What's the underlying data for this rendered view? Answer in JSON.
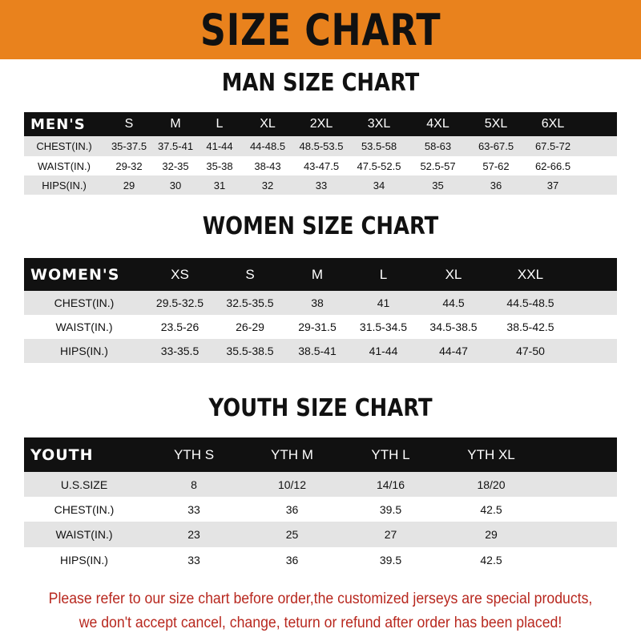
{
  "title": "SIZE CHART",
  "accent_color": "#e9821d",
  "men": {
    "title": "MAN SIZE CHART",
    "header": [
      "MEN'S",
      "S",
      "M",
      "L",
      "XL",
      "2XL",
      "3XL",
      "4XL",
      "5XL",
      "6XL"
    ],
    "rows": [
      [
        "CHEST(IN.)",
        "35-37.5",
        "37.5-41",
        "41-44",
        "44-48.5",
        "48.5-53.5",
        "53.5-58",
        "58-63",
        "63-67.5",
        "67.5-72"
      ],
      [
        "WAIST(IN.)",
        "29-32",
        "32-35",
        "35-38",
        "38-43",
        "43-47.5",
        "47.5-52.5",
        "52.5-57",
        "57-62",
        "62-66.5"
      ],
      [
        "HIPS(IN.)",
        "29",
        "30",
        "31",
        "32",
        "33",
        "34",
        "35",
        "36",
        "37"
      ]
    ]
  },
  "women": {
    "title": "WOMEN SIZE CHART",
    "header": [
      "WOMEN'S",
      "XS",
      "S",
      "M",
      "L",
      "XL",
      "XXL"
    ],
    "rows": [
      [
        "CHEST(IN.)",
        "29.5-32.5",
        "32.5-35.5",
        "38",
        "41",
        "44.5",
        "44.5-48.5"
      ],
      [
        "WAIST(IN.)",
        "23.5-26",
        "26-29",
        "29-31.5",
        "31.5-34.5",
        "34.5-38.5",
        "38.5-42.5"
      ],
      [
        "HIPS(IN.)",
        "33-35.5",
        "35.5-38.5",
        "38.5-41",
        "41-44",
        "44-47",
        "47-50"
      ]
    ]
  },
  "youth": {
    "title": "YOUTH SIZE CHART",
    "header": [
      "YOUTH",
      "YTH S",
      "YTH M",
      "YTH L",
      "YTH XL"
    ],
    "rows": [
      [
        "U.S.SIZE",
        "8",
        "10/12",
        "14/16",
        "18/20"
      ],
      [
        "CHEST(IN.)",
        "33",
        "36",
        "39.5",
        "42.5"
      ],
      [
        "WAIST(IN.)",
        "23",
        "25",
        "27",
        "29"
      ],
      [
        "HIPS(IN.)",
        "33",
        "36",
        "39.5",
        "42.5"
      ]
    ]
  },
  "footer": {
    "line1": "Please refer to our size chart before order,the customized jerseys are special products,",
    "line2": "we don't accept cancel, change, teturn or refund after order has been placed!"
  }
}
